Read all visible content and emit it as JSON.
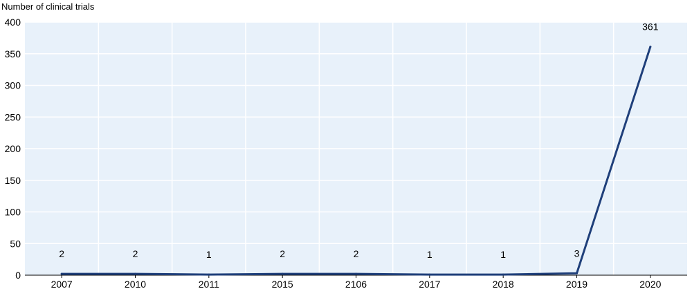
{
  "chart_data": {
    "type": "line",
    "ylabel": "Number of clinical trials",
    "categories": [
      "2007",
      "2010",
      "2011",
      "2015",
      "2106",
      "2017",
      "2018",
      "2019",
      "2020"
    ],
    "series": [
      {
        "values": [
          2,
          2,
          1,
          2,
          2,
          1,
          1,
          3,
          361
        ]
      }
    ],
    "data_labels": [
      "2",
      "2",
      "1",
      "2",
      "2",
      "1",
      "1",
      "3",
      "361"
    ],
    "ylim": [
      0,
      400
    ],
    "yticks": [
      0,
      50,
      100,
      150,
      200,
      250,
      300,
      350,
      400
    ],
    "grid": true,
    "colors": {
      "line": "#1f3f7a",
      "plot_background": "#e8f1fa",
      "grid": "#ffffff",
      "axis": "#000000"
    }
  }
}
